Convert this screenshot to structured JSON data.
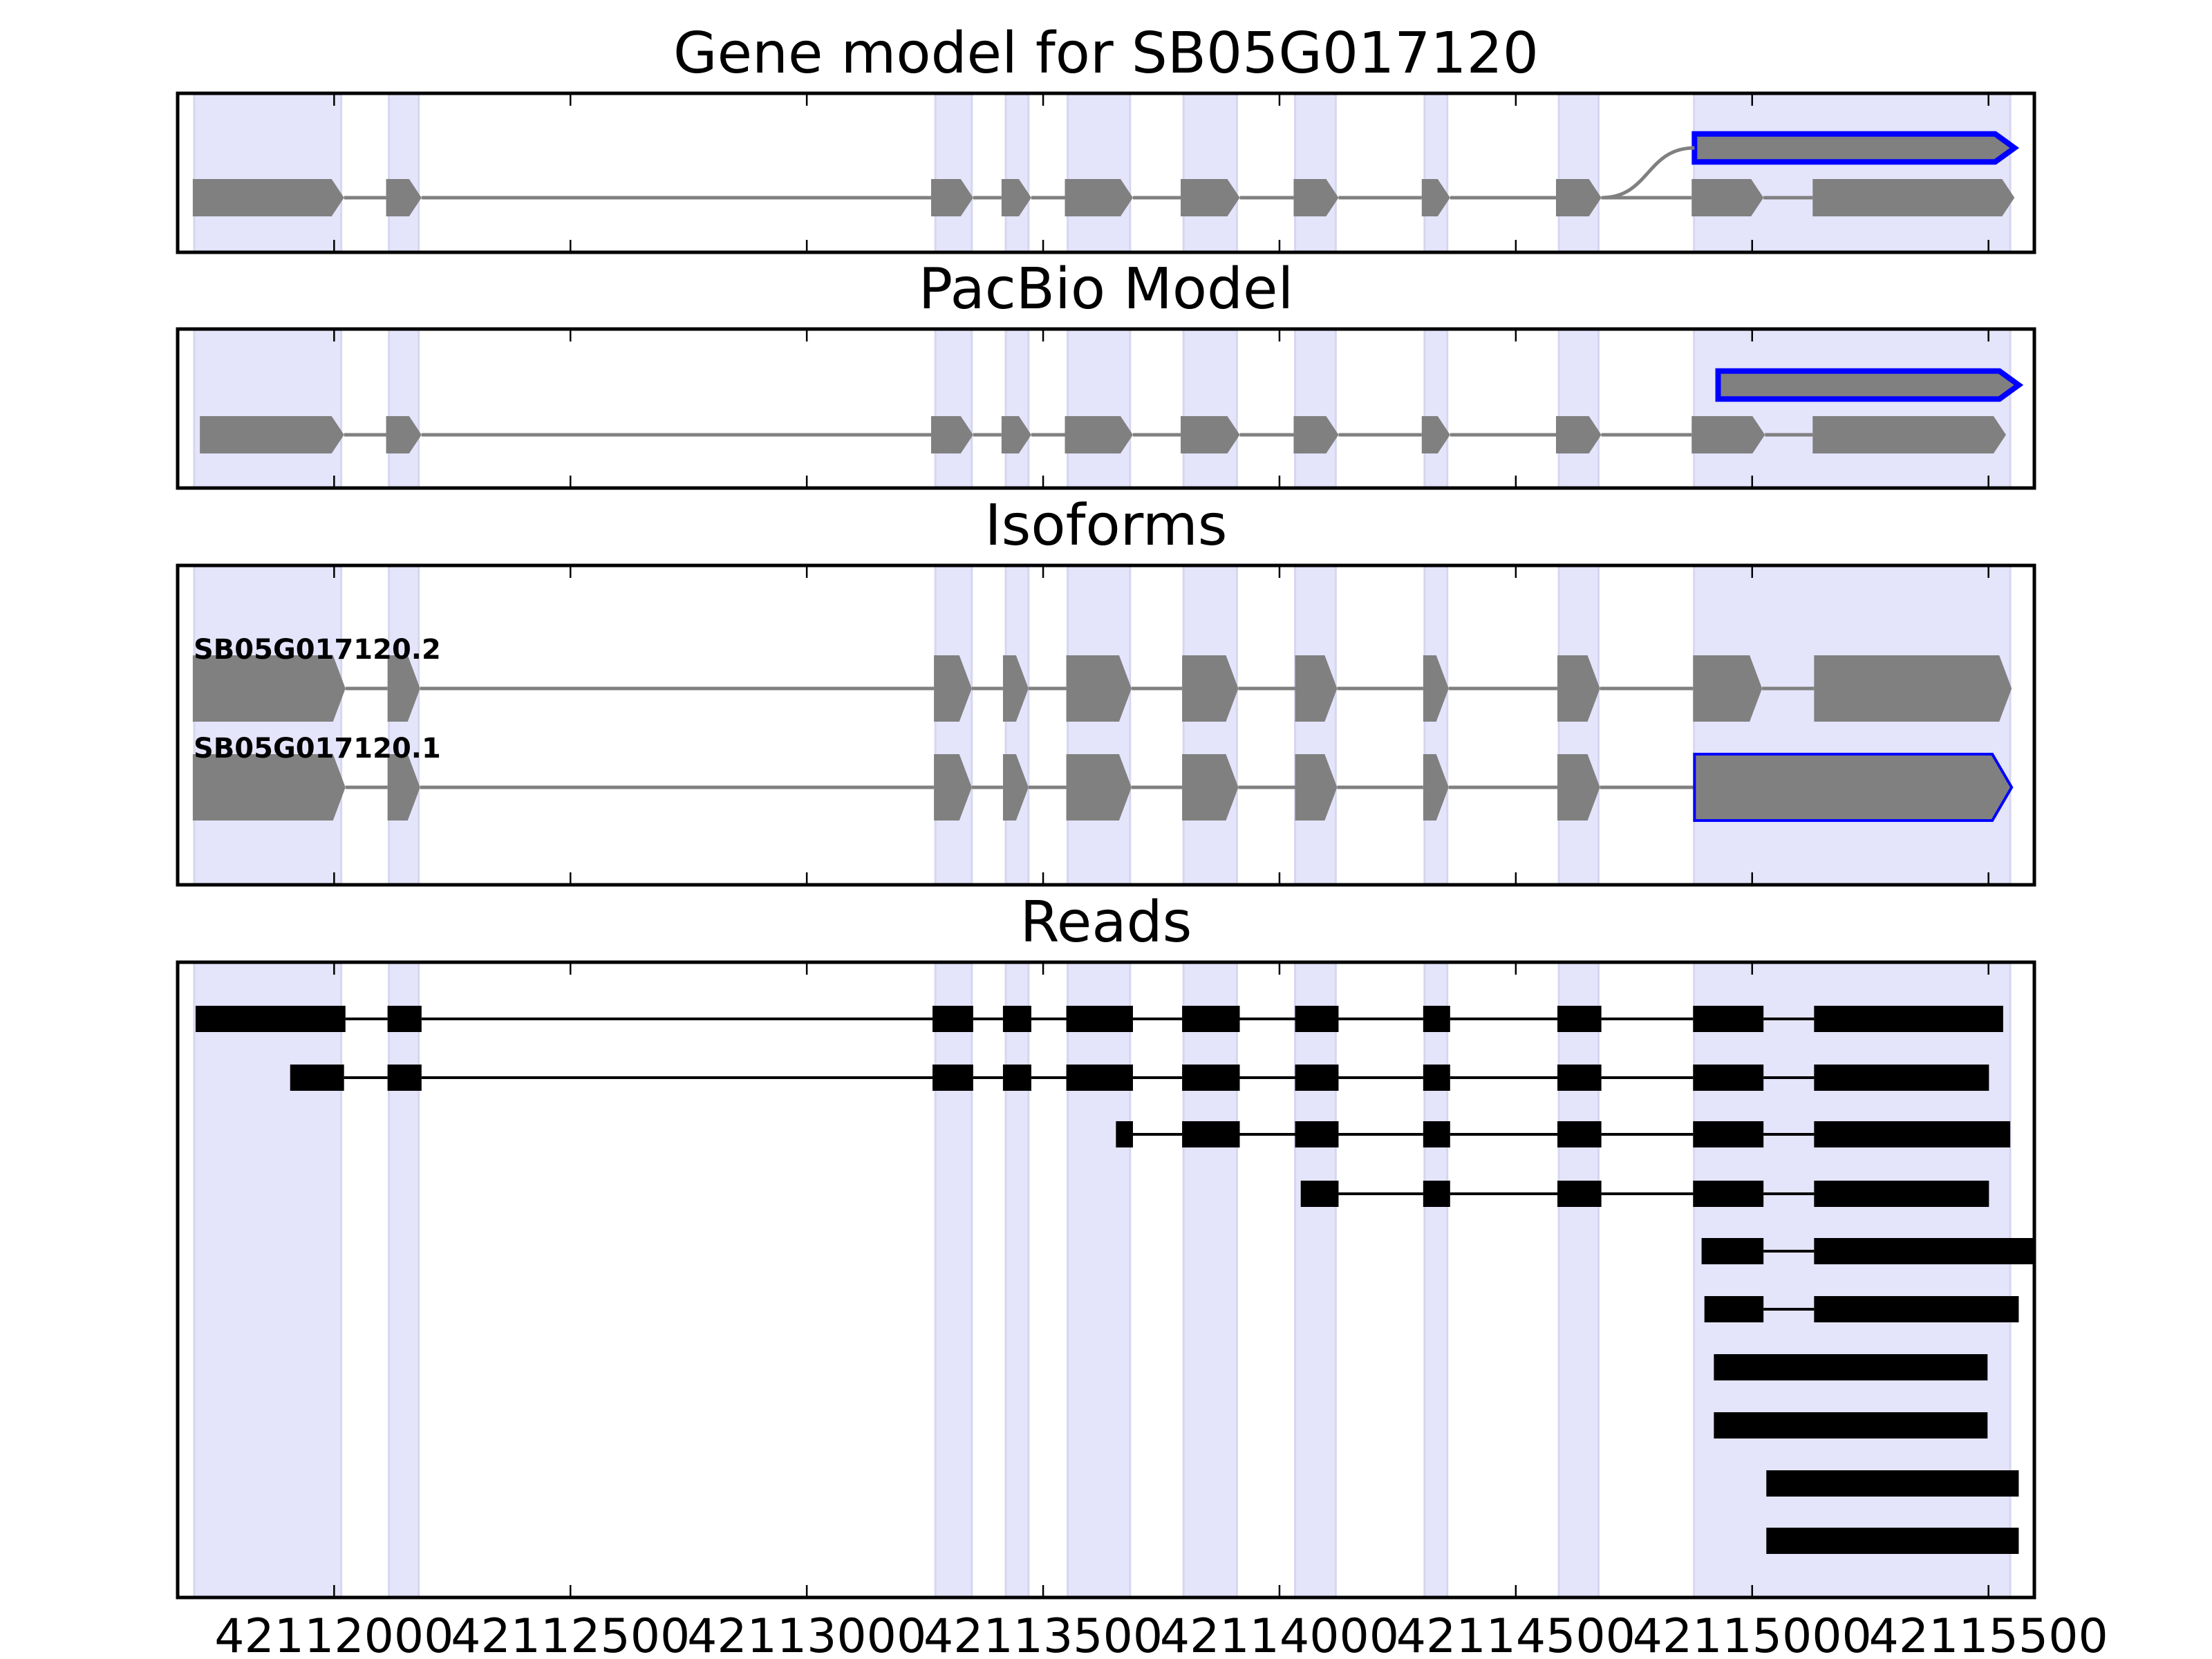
{
  "chart_data": {
    "type": "gene-track",
    "xlim": [
      42111669,
      42115597
    ],
    "x_ticks": [
      42112000,
      42112500,
      42113000,
      42113500,
      42114000,
      42114500,
      42115000,
      42115500
    ],
    "x_tick_labels": [
      "42112000",
      "42112500",
      "42113000",
      "42113500",
      "42114000",
      "42114500",
      "42115000",
      "42115500"
    ],
    "colors": {
      "exon": "#808080",
      "read": "#000000",
      "highlight": "#0000ff",
      "shade": "#e4e4fb"
    },
    "shaded_regions": [
      [
        42111704,
        42112015
      ],
      [
        42112116,
        42112179
      ],
      [
        42113272,
        42113349
      ],
      [
        42113421,
        42113469
      ],
      [
        42113552,
        42113684
      ],
      [
        42113797,
        42113910
      ],
      [
        42114033,
        42114119
      ],
      [
        42114307,
        42114355
      ],
      [
        42114591,
        42114675
      ],
      [
        42114877,
        42115546
      ]
    ],
    "panels": [
      {
        "title": "Gene model for SB05G017120",
        "kind": "model",
        "rows": [
          {
            "blocks": [
              [
                42114878,
                42115555
              ]
            ],
            "highlight_last": true,
            "outline": "thick"
          },
          {
            "blocks": [
              [
                42111701,
                42112021
              ],
              [
                42112110,
                42112185
              ],
              [
                42113263,
                42113352
              ],
              [
                42113412,
                42113475
              ],
              [
                42113546,
                42113690
              ],
              [
                42113791,
                42113916
              ],
              [
                42114030,
                42114125
              ],
              [
                42114301,
                42114361
              ],
              [
                42114585,
                42114681
              ],
              [
                42114872,
                42115024
              ],
              [
                42115128,
                42115555
              ]
            ]
          }
        ],
        "connector": {
          "from_row": 1,
          "from_bp": 42114681,
          "to_row": 0,
          "to_bp": 42114878
        }
      },
      {
        "title": "PacBio Model",
        "kind": "model",
        "rows": [
          {
            "blocks": [
              [
                42114928,
                42115564
              ]
            ],
            "highlight_last": true,
            "outline": "thick"
          },
          {
            "blocks": [
              [
                42111716,
                42112021
              ],
              [
                42112110,
                42112185
              ],
              [
                42113263,
                42113352
              ],
              [
                42113412,
                42113475
              ],
              [
                42113546,
                42113690
              ],
              [
                42113791,
                42113916
              ],
              [
                42114030,
                42114125
              ],
              [
                42114301,
                42114361
              ],
              [
                42114585,
                42114681
              ],
              [
                42114872,
                42115027
              ],
              [
                42115128,
                42115537
              ]
            ]
          }
        ]
      },
      {
        "title": "Isoforms",
        "kind": "isoform",
        "rows": [
          {
            "label": "SB05G017120.2",
            "blocks": [
              [
                42111701,
                42112024
              ],
              [
                42112113,
                42112182
              ],
              [
                42113269,
                42113349
              ],
              [
                42113415,
                42113469
              ],
              [
                42113549,
                42113687
              ],
              [
                42113794,
                42113913
              ],
              [
                42114033,
                42114122
              ],
              [
                42114304,
                42114358
              ],
              [
                42114588,
                42114678
              ],
              [
                42114875,
                42115021
              ],
              [
                42115131,
                42115549
              ]
            ]
          },
          {
            "label": "SB05G017120.1",
            "blocks": [
              [
                42111701,
                42112024
              ],
              [
                42112113,
                42112182
              ],
              [
                42113269,
                42113349
              ],
              [
                42113415,
                42113469
              ],
              [
                42113549,
                42113687
              ],
              [
                42113794,
                42113913
              ],
              [
                42114033,
                42114122
              ],
              [
                42114304,
                42114358
              ],
              [
                42114588,
                42114678
              ],
              [
                42114878,
                42115549
              ]
            ],
            "highlight_last": true,
            "outline": "thin"
          }
        ]
      },
      {
        "title": "Reads",
        "kind": "reads",
        "rows": [
          {
            "blocks": [
              [
                42111707,
                42112024
              ],
              [
                42112113,
                42112185
              ],
              [
                42113266,
                42113352
              ],
              [
                42113415,
                42113475
              ],
              [
                42113549,
                42113690
              ],
              [
                42113794,
                42113916
              ],
              [
                42114033,
                42114125
              ],
              [
                42114304,
                42114361
              ],
              [
                42114588,
                42114681
              ],
              [
                42114875,
                42115024
              ],
              [
                42115131,
                42115531
              ]
            ]
          },
          {
            "blocks": [
              [
                42111907,
                42112021
              ],
              [
                42112113,
                42112185
              ],
              [
                42113266,
                42113352
              ],
              [
                42113415,
                42113475
              ],
              [
                42113549,
                42113690
              ],
              [
                42113794,
                42113916
              ],
              [
                42114033,
                42114125
              ],
              [
                42114304,
                42114361
              ],
              [
                42114588,
                42114681
              ],
              [
                42114875,
                42115024
              ],
              [
                42115131,
                42115501
              ]
            ]
          },
          {
            "blocks": [
              [
                42113654,
                42113690
              ],
              [
                42113794,
                42113916
              ],
              [
                42114033,
                42114125
              ],
              [
                42114304,
                42114361
              ],
              [
                42114588,
                42114681
              ],
              [
                42114875,
                42115024
              ],
              [
                42115131,
                42115546
              ]
            ]
          },
          {
            "blocks": [
              [
                42114045,
                42114125
              ],
              [
                42114304,
                42114361
              ],
              [
                42114588,
                42114681
              ],
              [
                42114875,
                42115024
              ],
              [
                42115131,
                42115501
              ]
            ]
          },
          {
            "blocks": [
              [
                42114893,
                42115024
              ],
              [
                42115131,
                42115600
              ]
            ]
          },
          {
            "blocks": [
              [
                42114899,
                42115024
              ],
              [
                42115131,
                42115564
              ]
            ]
          },
          {
            "blocks": [
              [
                42114919,
                42115498
              ]
            ]
          },
          {
            "blocks": [
              [
                42114919,
                42115498
              ]
            ]
          },
          {
            "blocks": [
              [
                42115030,
                42115564
              ]
            ]
          },
          {
            "blocks": [
              [
                42115030,
                42115564
              ]
            ]
          }
        ]
      }
    ]
  }
}
